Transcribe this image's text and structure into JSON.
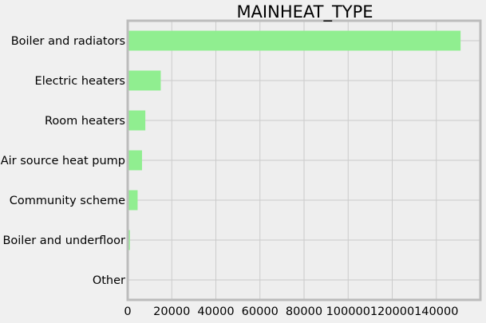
{
  "chart_data": {
    "type": "bar",
    "orientation": "horizontal",
    "title": "MAINHEAT_TYPE",
    "xlabel": "",
    "ylabel": "",
    "categories": [
      "Boiler and radiators",
      "Electric heaters",
      "Room heaters",
      "Air source heat pump",
      "Community scheme",
      "Boiler and underfloor",
      "Other"
    ],
    "values": [
      151000,
      15000,
      8000,
      6500,
      4500,
      1000,
      200
    ],
    "xlim": [
      0,
      160000
    ],
    "xticks": [
      "0",
      "20000",
      "40000",
      "60000",
      "80000",
      "100000",
      "120000",
      "140000"
    ],
    "grid": true,
    "legend": "none",
    "bar_color": "#90ee90",
    "background_color": "#eeeeee",
    "figure_color": "#f0f0f0",
    "grid_color": "#cbcbcb",
    "spine_color": "#bcbcbc"
  }
}
